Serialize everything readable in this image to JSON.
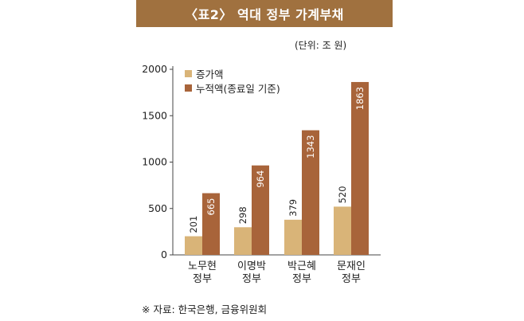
{
  "title": "〈표2〉 역대 정부 가계부채",
  "unit_label": "(단위: 조 원)",
  "source": "※ 자료: 한국은행, 금융위원회",
  "colors": {
    "header": "#a0713f",
    "increase": "#d9b478",
    "cumulative": "#a8643a",
    "axis": "#444444"
  },
  "legend": [
    {
      "label": "증가액",
      "color": "#d9b478"
    },
    {
      "label": "누적액(종료일 기준)",
      "color": "#a8643a"
    }
  ],
  "chart_data": {
    "type": "bar",
    "categories": [
      "노무현\n정부",
      "이명박\n정부",
      "박근혜\n정부",
      "문재인\n정부"
    ],
    "category_lines": [
      [
        "노무현",
        "정부"
      ],
      [
        "이명박",
        "정부"
      ],
      [
        "박근혜",
        "정부"
      ],
      [
        "문재인",
        "정부"
      ]
    ],
    "series": [
      {
        "name": "증가액",
        "values": [
          201,
          298,
          379,
          520
        ]
      },
      {
        "name": "누적액(종료일 기준)",
        "values": [
          665,
          964,
          1343,
          1863
        ]
      }
    ],
    "ylim": [
      0,
      2000
    ],
    "yticks": [
      0,
      500,
      1000,
      1500,
      2000
    ],
    "grid": false,
    "legend_position": "top-left"
  }
}
